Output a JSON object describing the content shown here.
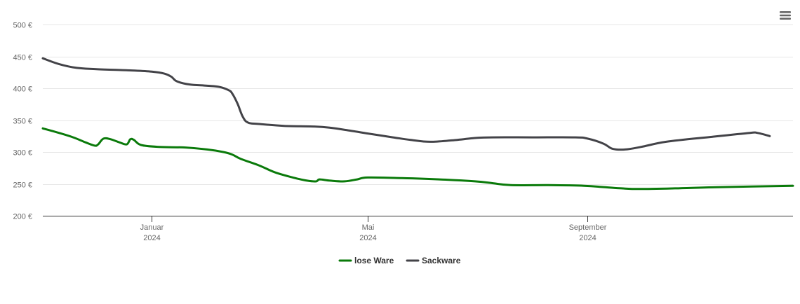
{
  "chart_data": {
    "type": "line",
    "title": "",
    "xlabel": "",
    "ylabel": "",
    "ylim": [
      200,
      500
    ],
    "y_ticks": [
      "200 €",
      "250 €",
      "300 €",
      "350 €",
      "400 €",
      "450 €",
      "500 €"
    ],
    "y_tick_values": [
      200,
      250,
      300,
      350,
      400,
      450,
      500
    ],
    "x_range": [
      "2023-11-01",
      "2024-12-25"
    ],
    "x_ticks": [
      {
        "date": "2024-01-01",
        "label": "Januar",
        "year": "2024"
      },
      {
        "date": "2024-05-01",
        "label": "Mai",
        "year": "2024"
      },
      {
        "date": "2024-09-01",
        "label": "September",
        "year": "2024"
      }
    ],
    "grid": true,
    "legend_position": "bottom-center",
    "series": [
      {
        "name": "lose Ware",
        "color": "#0a7a0a",
        "points": [
          [
            "2023-11-01",
            337
          ],
          [
            "2023-11-10",
            330
          ],
          [
            "2023-11-18",
            323
          ],
          [
            "2023-11-25",
            315
          ],
          [
            "2023-11-30",
            310
          ],
          [
            "2023-12-02",
            312
          ],
          [
            "2023-12-05",
            321
          ],
          [
            "2023-12-09",
            320
          ],
          [
            "2023-12-14",
            315
          ],
          [
            "2023-12-18",
            312
          ],
          [
            "2023-12-20",
            320
          ],
          [
            "2023-12-22",
            319
          ],
          [
            "2023-12-26",
            311
          ],
          [
            "2024-01-05",
            308
          ],
          [
            "2024-01-20",
            307
          ],
          [
            "2024-02-01",
            304
          ],
          [
            "2024-02-10",
            300
          ],
          [
            "2024-02-15",
            296
          ],
          [
            "2024-02-20",
            289
          ],
          [
            "2024-03-01",
            279
          ],
          [
            "2024-03-10",
            268
          ],
          [
            "2024-03-20",
            260
          ],
          [
            "2024-03-28",
            255
          ],
          [
            "2024-04-02",
            254
          ],
          [
            "2024-04-04",
            257
          ],
          [
            "2024-04-10",
            255
          ],
          [
            "2024-04-18",
            254
          ],
          [
            "2024-04-25",
            257
          ],
          [
            "2024-05-01",
            260
          ],
          [
            "2024-05-20",
            259
          ],
          [
            "2024-06-10",
            257
          ],
          [
            "2024-06-30",
            254
          ],
          [
            "2024-07-10",
            251
          ],
          [
            "2024-07-20",
            248
          ],
          [
            "2024-08-10",
            248
          ],
          [
            "2024-08-30",
            247
          ],
          [
            "2024-09-10",
            245
          ],
          [
            "2024-09-20",
            243
          ],
          [
            "2024-09-30",
            242
          ],
          [
            "2024-10-20",
            243
          ],
          [
            "2024-11-15",
            245
          ],
          [
            "2024-12-25",
            247
          ]
        ]
      },
      {
        "name": "Sackware",
        "color": "#434348",
        "points": [
          [
            "2023-11-01",
            447
          ],
          [
            "2023-11-10",
            438
          ],
          [
            "2023-11-20",
            432
          ],
          [
            "2023-12-01",
            430
          ],
          [
            "2023-12-20",
            428
          ],
          [
            "2024-01-01",
            426
          ],
          [
            "2024-01-08",
            423
          ],
          [
            "2024-01-12",
            418
          ],
          [
            "2024-01-15",
            411
          ],
          [
            "2024-01-22",
            406
          ],
          [
            "2024-02-01",
            404
          ],
          [
            "2024-02-08",
            402
          ],
          [
            "2024-02-13",
            397
          ],
          [
            "2024-02-15",
            392
          ],
          [
            "2024-02-18",
            376
          ],
          [
            "2024-02-21",
            355
          ],
          [
            "2024-02-24",
            346
          ],
          [
            "2024-03-01",
            344
          ],
          [
            "2024-03-15",
            341
          ],
          [
            "2024-04-01",
            340
          ],
          [
            "2024-04-10",
            338
          ],
          [
            "2024-04-20",
            334
          ],
          [
            "2024-05-01",
            329
          ],
          [
            "2024-05-15",
            323
          ],
          [
            "2024-05-25",
            319
          ],
          [
            "2024-06-05",
            316
          ],
          [
            "2024-06-20",
            319
          ],
          [
            "2024-06-30",
            322
          ],
          [
            "2024-07-10",
            323
          ],
          [
            "2024-08-01",
            323
          ],
          [
            "2024-08-25",
            323
          ],
          [
            "2024-09-01",
            321
          ],
          [
            "2024-09-10",
            313
          ],
          [
            "2024-09-15",
            305
          ],
          [
            "2024-09-22",
            304
          ],
          [
            "2024-10-01",
            308
          ],
          [
            "2024-10-15",
            316
          ],
          [
            "2024-11-10",
            324
          ],
          [
            "2024-12-01",
            330
          ],
          [
            "2024-12-05",
            330
          ],
          [
            "2024-12-12",
            325
          ]
        ]
      }
    ]
  },
  "menu": {
    "icon": "hamburger-menu-icon"
  }
}
